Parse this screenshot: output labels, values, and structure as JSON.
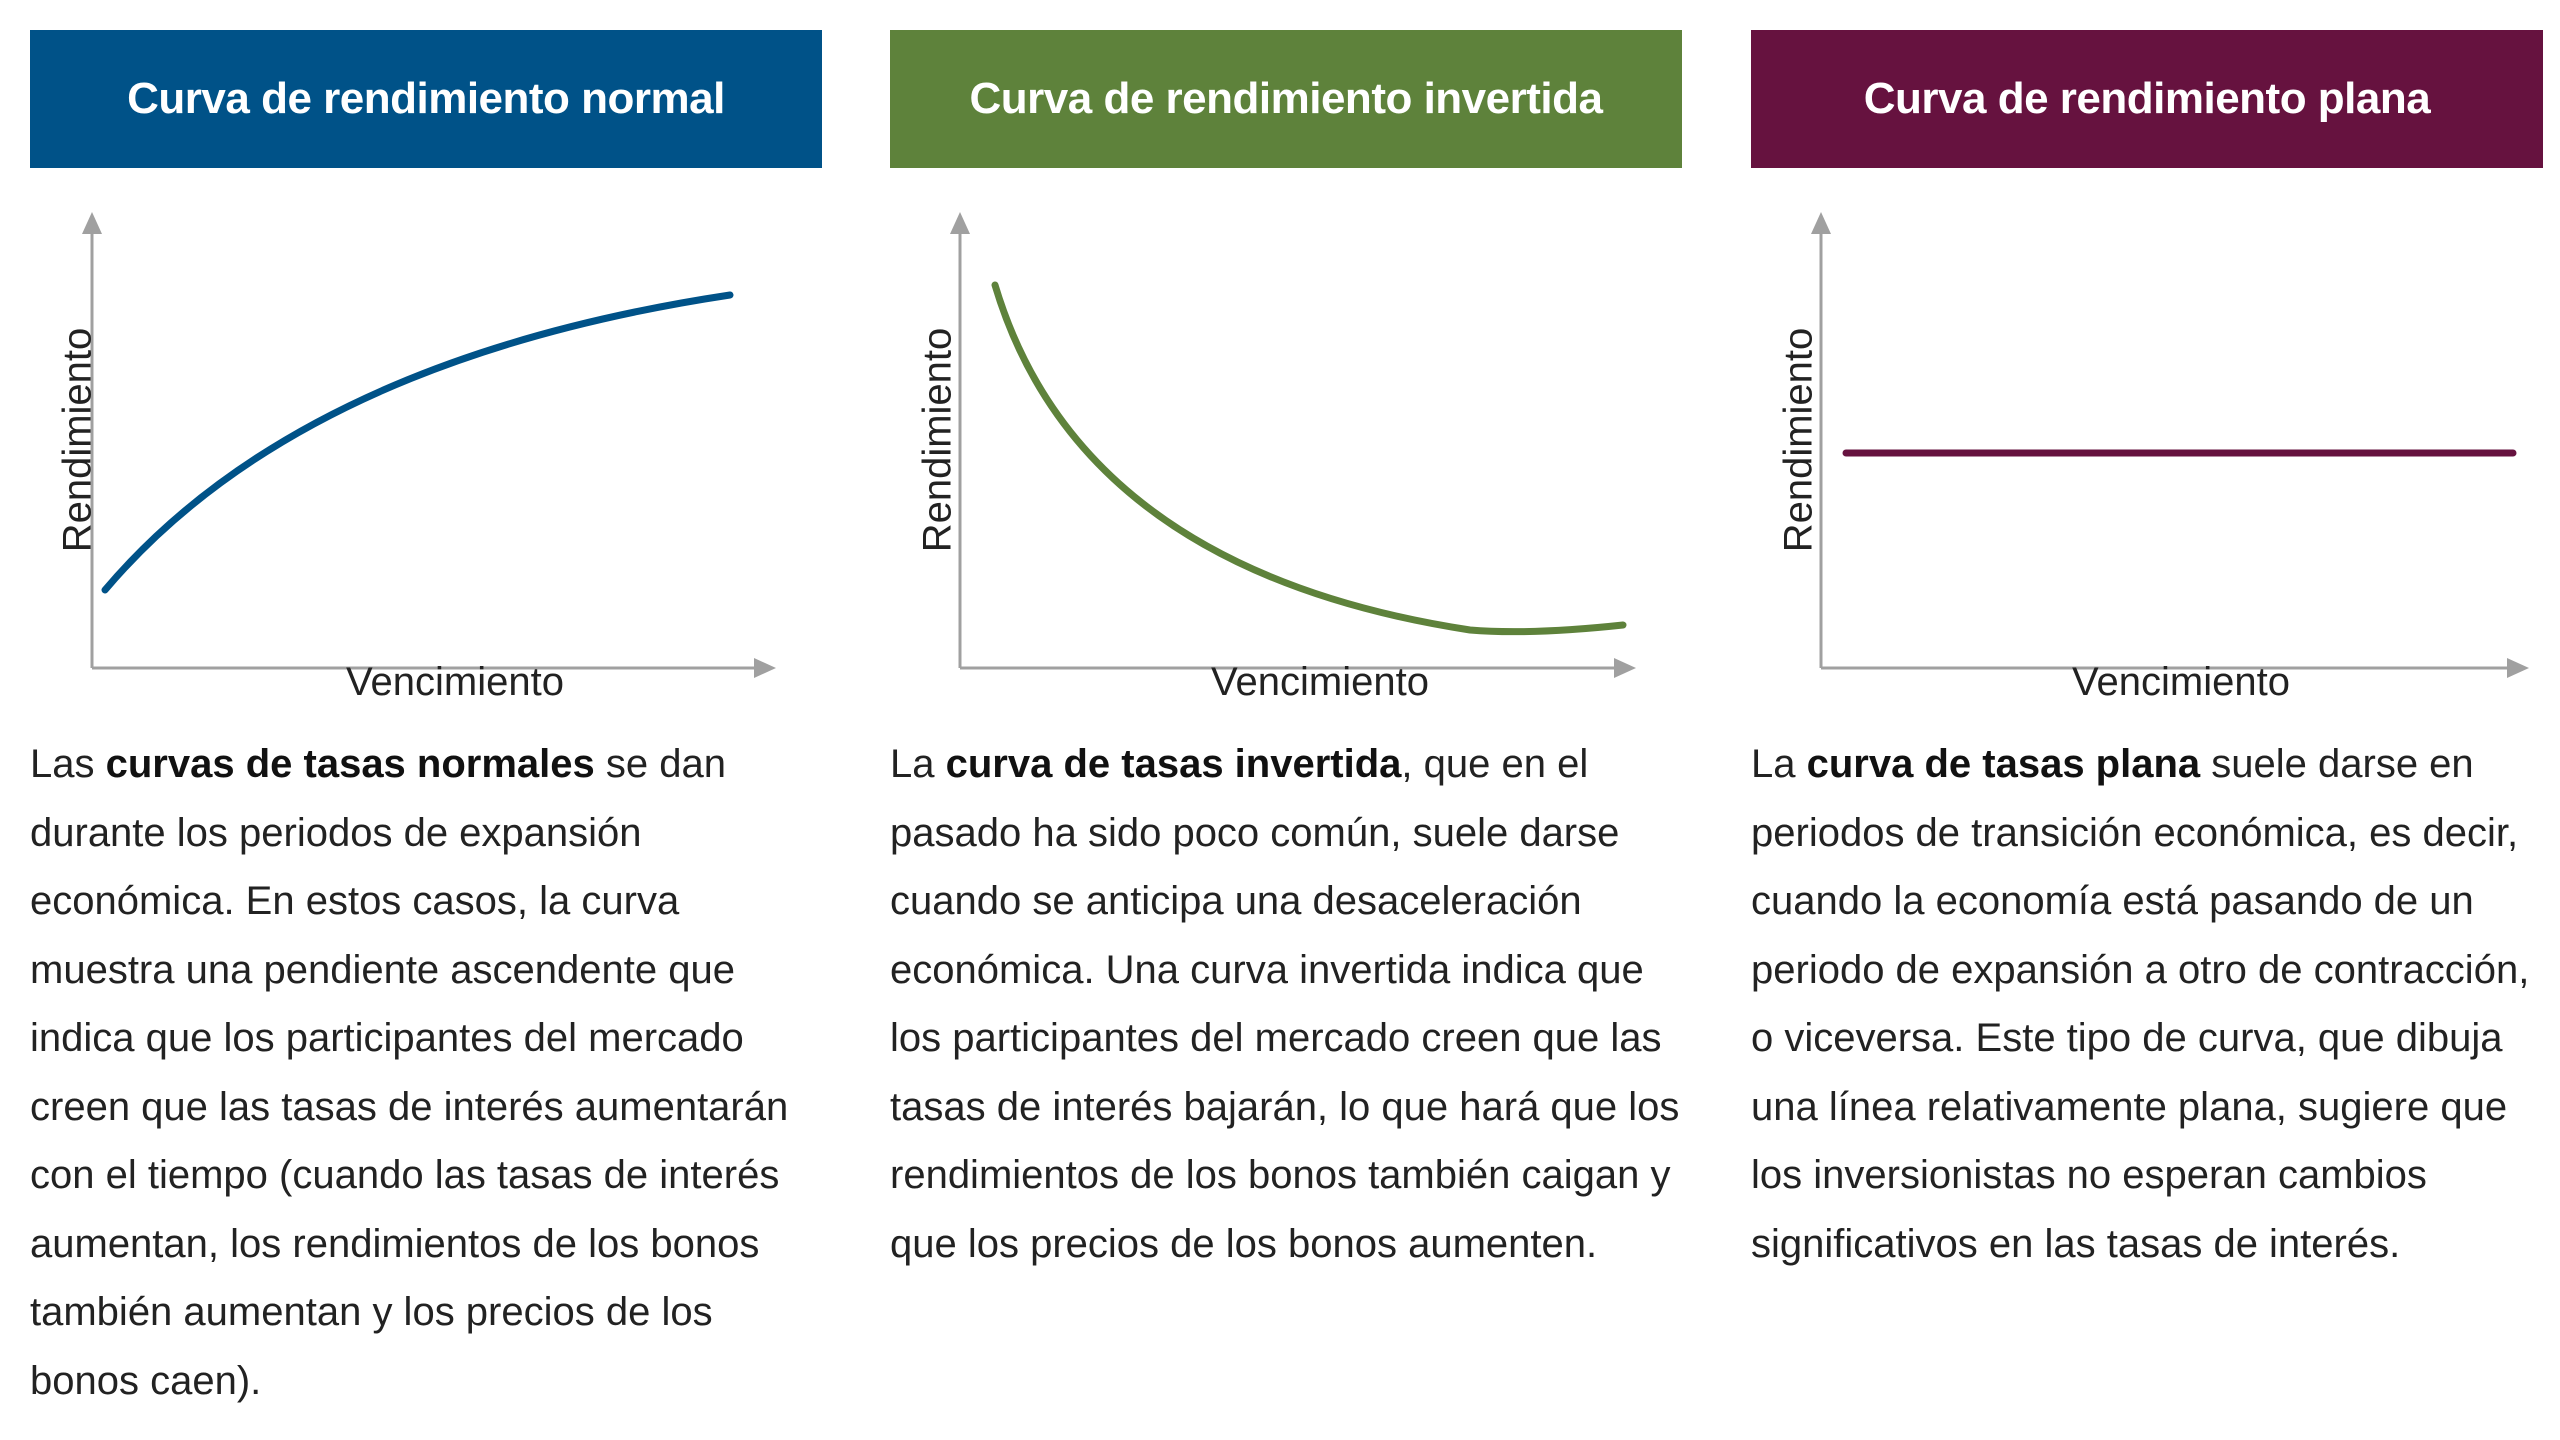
{
  "panels": [
    {
      "title": "Curva de rendimiento normal",
      "color": "#005288",
      "ylabel": "Rendimiento",
      "xlabel": "Vencimiento",
      "curve": "normal",
      "text_pre": "Las ",
      "text_bold": "curvas de tasas normales",
      "text_post": " se dan durante los periodos de expansión económica. En estos casos, la curva muestra una pendiente ascendente que indica que los participantes del mercado creen que las tasas de interés aumentarán con el tiempo (cuando las tasas de interés aumentan, los rendimientos de los bonos también aumentan y los precios de los bonos caen)."
    },
    {
      "title": "Curva de rendimiento invertida",
      "color": "#5e823b",
      "ylabel": "Rendimiento",
      "xlabel": "Vencimiento",
      "curve": "inverted",
      "text_pre": "La ",
      "text_bold": "curva de tasas invertida",
      "text_post": ", que en el pasado ha sido poco común, suele darse cuando se anticipa una desaceleración económica. Una curva invertida indica que los participantes del mercado creen que las tasas de interés bajarán, lo que hará que los rendimientos de los bonos también caigan y que los precios de los bonos aumenten."
    },
    {
      "title": "Curva de rendimiento plana",
      "color": "#66123f",
      "ylabel": "Rendimiento",
      "xlabel": "Vencimiento",
      "curve": "flat",
      "text_pre": "La ",
      "text_bold": "curva de tasas plana",
      "text_post": " suele darse en periodos de transición económica, es decir, cuando la economía está pasando de un periodo de expansión a otro de contracción, o viceversa. Este tipo de curva, que dibuja una línea relativamente plana, sugiere que los inversionistas no esperan cambios significativos en las tasas de interés."
    }
  ],
  "axis_color": "#a0a0a0"
}
